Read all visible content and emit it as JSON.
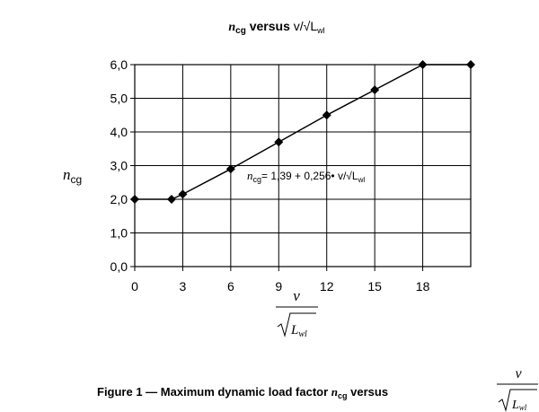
{
  "chart_data": {
    "type": "line",
    "title": {
      "n": "n",
      "n_sub": "cg",
      "middle": " versus ",
      "v": "v/",
      "sqrt": "√",
      "L": "L",
      "L_sub": "wl"
    },
    "x": [
      0,
      2.3,
      3,
      6,
      9,
      12,
      15,
      18,
      21
    ],
    "y": [
      2.0,
      2.0,
      2.15,
      2.9,
      3.7,
      4.5,
      5.25,
      6.0,
      6.0
    ],
    "xlim": [
      0,
      21
    ],
    "ylim": [
      0,
      6
    ],
    "x_ticks": [
      0,
      3,
      6,
      9,
      12,
      15,
      18
    ],
    "x_tick_labels": [
      "0",
      "3",
      "6",
      "9",
      "12",
      "15",
      "18"
    ],
    "y_ticks": [
      0,
      1,
      2,
      3,
      4,
      5,
      6
    ],
    "y_tick_labels": [
      "0,0",
      "1,0",
      "2,0",
      "3,0",
      "4,0",
      "5,0",
      "6,0"
    ],
    "x_grid_lines": [
      3,
      6,
      9,
      12,
      15,
      18,
      21
    ],
    "grid": true,
    "ylabel": {
      "n": "n",
      "sub": "cg"
    },
    "xlabel": {
      "num": "v",
      "den_L": "L",
      "den_sub": "wl"
    },
    "annotation": {
      "n": "n",
      "sub": "cg",
      "formula": "= 1,39 + 0,256• v/",
      "sqrt": "√",
      "L": "L",
      "L_sub": "wl",
      "x": 9.3,
      "y": 2.7
    },
    "caption": {
      "prefix": "Figure 1 — Maximum dynamic load factor ",
      "n": "n",
      "sub": "cg",
      "middle": " versus",
      "num": "v",
      "den_L": "L",
      "den_sub": "wl"
    },
    "color": "#000000"
  }
}
